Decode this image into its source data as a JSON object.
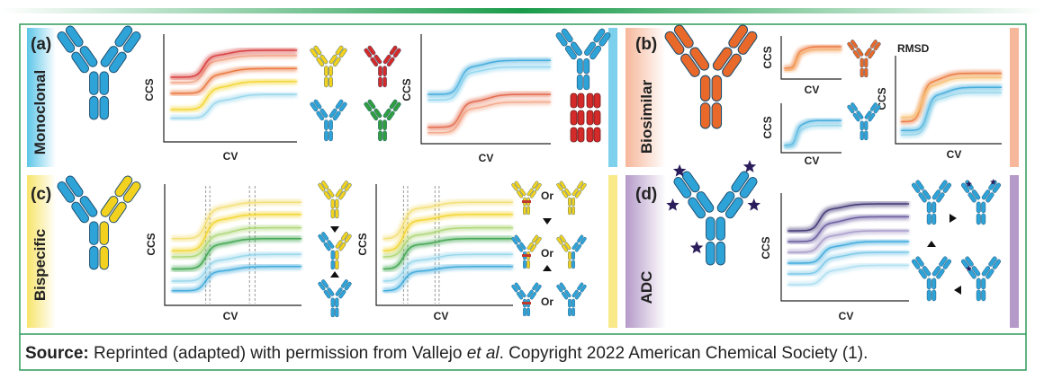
{
  "panels": [
    {
      "label": "(a)",
      "name": "Monoclonal",
      "plots": [
        {
          "y_label": "CCS",
          "x_label": "CV"
        },
        {
          "y_label": "CCS",
          "x_label": "CV"
        }
      ]
    },
    {
      "label": "(b)",
      "name": "Biosimilar",
      "plots": [
        {
          "y_label": "CCS",
          "x_label": "CV"
        },
        {
          "y_label": "CCS",
          "x_label": "CV"
        },
        {
          "y_label": "CCS",
          "x_label": "CV",
          "title": "RMSD"
        }
      ]
    },
    {
      "label": "(c)",
      "name": "Bispecific",
      "plots": [
        {
          "y_label": "CCS",
          "x_label": "CV"
        },
        {
          "y_label": "CCS",
          "x_label": "CV"
        }
      ],
      "connectors": [
        "Or",
        "Or",
        "Or"
      ]
    },
    {
      "label": "(d)",
      "name": "ADC",
      "plots": [
        {
          "y_label": "CCS",
          "x_label": "CV"
        }
      ]
    }
  ],
  "source": {
    "label": "Source:",
    "text_before": " Reprinted (adapted) with permission from Vallejo ",
    "italic": "et al",
    "text_after": ". Copyright 2022 American Chemical Society (1)."
  }
}
